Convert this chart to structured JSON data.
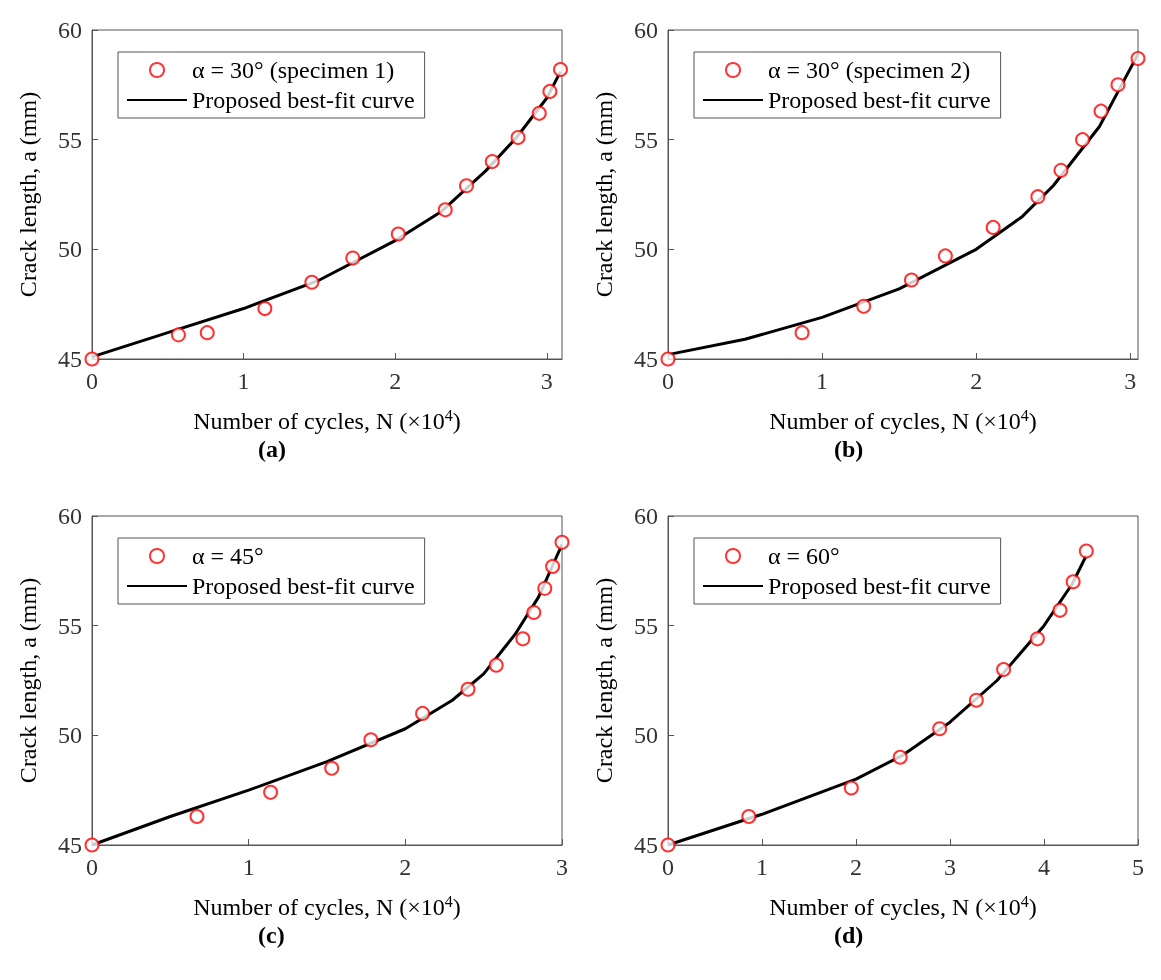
{
  "chart_data": [
    {
      "type": "scatter",
      "title": "(a)",
      "xlabel": "Number of cycles, N (×10$^{4}$)",
      "ylabel": "Crack length, a (mm)",
      "xlim": [
        0,
        3.1
      ],
      "xticks": [
        0,
        1,
        2,
        3
      ],
      "ylim": [
        45,
        60
      ],
      "yticks": [
        45,
        50,
        55,
        60
      ],
      "grid": false,
      "legend": "top left",
      "series": [
        {
          "name": "α = 30° (specimen 1)",
          "marker": "circle",
          "color": "#ff0000",
          "x": [
            0,
            0.57,
            0.76,
            1.14,
            1.45,
            1.72,
            2.02,
            2.33,
            2.47,
            2.64,
            2.81,
            2.95,
            3.02,
            3.09
          ],
          "values": [
            45,
            46.1,
            46.2,
            47.3,
            48.5,
            49.6,
            50.7,
            51.8,
            52.9,
            54.0,
            55.1,
            56.2,
            57.2,
            58.2
          ]
        },
        {
          "name": "Proposed best-fit curve",
          "type": "line",
          "marker": "none",
          "line_style": "solid",
          "color": "#000000",
          "x": [
            0,
            0.5,
            1,
            1.5,
            2,
            2.3,
            2.6,
            2.8,
            3.0,
            3.09
          ],
          "values": [
            45.1,
            46.2,
            47.3,
            48.6,
            50.4,
            51.7,
            53.6,
            55.1,
            56.9,
            58.1
          ]
        }
      ]
    },
    {
      "type": "scatter",
      "title": "(b)",
      "xlabel": "Number of cycles, N (×10$^{4}$)",
      "ylabel": "Crack length, a (mm)",
      "xlim": [
        0,
        3.05
      ],
      "xticks": [
        0,
        1,
        2,
        3
      ],
      "ylim": [
        45,
        60
      ],
      "yticks": [
        45,
        50,
        55,
        60
      ],
      "grid": false,
      "legend": "top left",
      "series": [
        {
          "name": "α = 30° (specimen 2)",
          "marker": "circle",
          "color": "#ff0000",
          "x": [
            0,
            0.87,
            1.27,
            1.58,
            1.8,
            2.11,
            2.4,
            2.55,
            2.69,
            2.81,
            2.92,
            3.05
          ],
          "values": [
            45,
            46.2,
            47.4,
            48.6,
            49.7,
            51.0,
            52.4,
            53.6,
            55.0,
            56.3,
            57.5,
            58.7
          ]
        },
        {
          "name": "Proposed best-fit curve",
          "type": "line",
          "marker": "none",
          "line_style": "solid",
          "color": "#000000",
          "x": [
            0,
            0.5,
            1,
            1.5,
            2,
            2.3,
            2.5,
            2.8,
            3.05
          ],
          "values": [
            45.2,
            45.9,
            46.9,
            48.2,
            50.0,
            51.5,
            52.9,
            55.6,
            58.9
          ]
        }
      ]
    },
    {
      "type": "scatter",
      "title": "(c)",
      "xlabel": "Number of cycles, N (×10$^{4}$)",
      "ylabel": "Crack length, a (mm)",
      "xlim": [
        0,
        3
      ],
      "xticks": [
        0,
        1,
        2,
        3
      ],
      "ylim": [
        45,
        60
      ],
      "yticks": [
        45,
        50,
        55,
        60
      ],
      "grid": false,
      "legend": "top left",
      "series": [
        {
          "name": "α = 45°",
          "marker": "circle",
          "color": "#ff0000",
          "x": [
            0,
            0.67,
            1.14,
            1.53,
            1.78,
            2.11,
            2.4,
            2.58,
            2.75,
            2.82,
            2.89,
            2.94,
            3.0
          ],
          "values": [
            45,
            46.3,
            47.4,
            48.5,
            49.8,
            51.0,
            52.1,
            53.2,
            54.4,
            55.6,
            56.7,
            57.7,
            58.8
          ]
        },
        {
          "name": "Proposed best-fit curve",
          "type": "line",
          "marker": "none",
          "line_style": "solid",
          "color": "#000000",
          "x": [
            0,
            0.5,
            1,
            1.5,
            2,
            2.3,
            2.5,
            2.7,
            2.85,
            3.0
          ],
          "values": [
            45.0,
            46.3,
            47.5,
            48.8,
            50.3,
            51.6,
            52.8,
            54.6,
            56.3,
            58.7
          ]
        }
      ]
    },
    {
      "type": "scatter",
      "title": "(d)",
      "xlabel": "Number of cycles, N (×10$^{4}$)",
      "ylabel": "Crack length, a (mm)",
      "xlim": [
        0,
        5
      ],
      "xticks": [
        0,
        1,
        2,
        3,
        4,
        5
      ],
      "ylim": [
        45,
        60
      ],
      "yticks": [
        45,
        50,
        55,
        60
      ],
      "grid": false,
      "legend": "top left",
      "series": [
        {
          "name": "α = 60°",
          "marker": "circle",
          "color": "#ff0000",
          "x": [
            0,
            0.86,
            1.95,
            2.47,
            2.89,
            3.28,
            3.57,
            3.93,
            4.17,
            4.31,
            4.45
          ],
          "values": [
            45,
            46.3,
            47.6,
            49.0,
            50.3,
            51.6,
            53.0,
            54.4,
            55.7,
            57.0,
            58.4
          ]
        },
        {
          "name": "Proposed best-fit curve",
          "type": "line",
          "marker": "none",
          "line_style": "solid",
          "color": "#000000",
          "x": [
            0,
            1,
            2,
            2.5,
            3,
            3.5,
            4,
            4.3,
            4.45
          ],
          "values": [
            45.0,
            46.4,
            48.0,
            49.1,
            50.6,
            52.5,
            55.0,
            56.9,
            58.2
          ]
        }
      ]
    }
  ]
}
